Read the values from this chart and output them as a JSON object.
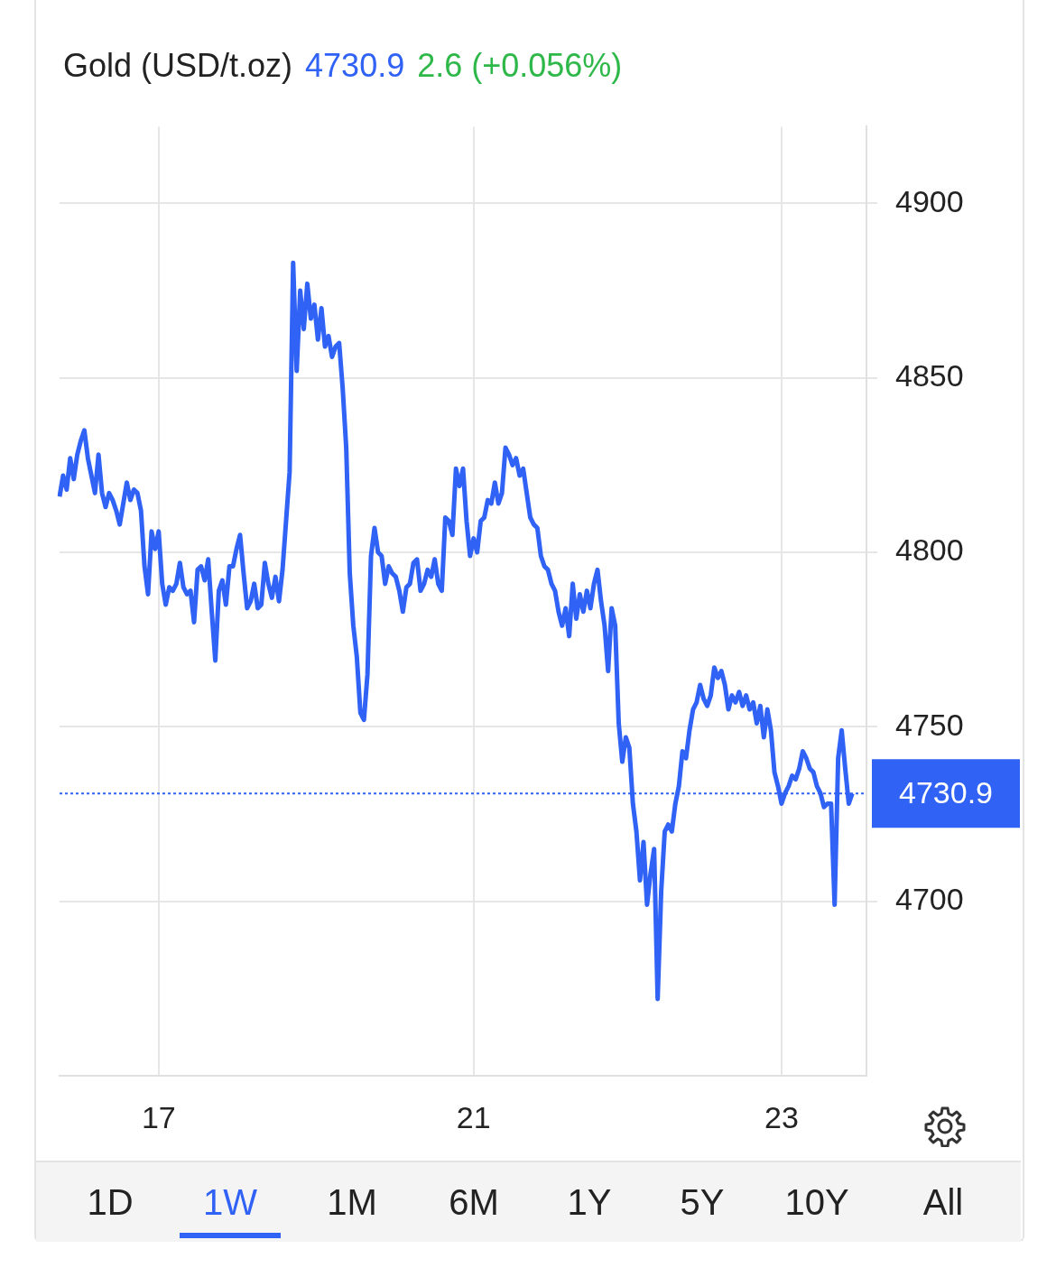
{
  "chart_data": {
    "type": "line",
    "title": "Gold (USD/t.oz)",
    "annotations": [
      "4730.9",
      "2.6 (+0.056%)",
      "1D",
      "1W",
      "1M",
      "6M",
      "1Y",
      "5Y",
      "10Y",
      "All"
    ],
    "categories": [
      null,
      null,
      null,
      null,
      null,
      null,
      null,
      null,
      null,
      null,
      null,
      null,
      null,
      null,
      null,
      null,
      null,
      null,
      null,
      null,
      null,
      null,
      null,
      null,
      null,
      null,
      null,
      null,
      "17",
      null,
      null,
      null,
      null,
      null,
      null,
      null,
      null,
      null,
      null,
      null,
      null,
      null,
      null,
      null,
      null,
      null,
      null,
      null,
      null,
      null,
      null,
      null,
      null,
      null,
      null,
      null,
      null,
      null,
      null,
      null,
      null,
      null,
      null,
      null,
      null,
      null,
      null,
      null,
      null,
      null,
      null,
      null,
      null,
      null,
      null,
      null,
      null,
      null,
      null,
      null,
      null,
      null,
      null,
      null,
      null,
      null,
      null,
      null,
      null,
      null,
      null,
      null,
      null,
      null,
      null,
      null,
      null,
      null,
      null,
      null,
      null,
      null,
      null,
      null,
      null,
      null,
      null,
      null,
      null,
      null,
      null,
      null,
      null,
      null,
      null,
      null,
      null,
      "21",
      null,
      null,
      null,
      null,
      null,
      null,
      null,
      null,
      null,
      null,
      null,
      null,
      null,
      null,
      null,
      null,
      null,
      null,
      null,
      null,
      null,
      null,
      null,
      null,
      null,
      null,
      null,
      null,
      null,
      null,
      null,
      null,
      null,
      null,
      null,
      null,
      null,
      null,
      null,
      null,
      null,
      null,
      null,
      null,
      null,
      null,
      null,
      null,
      null,
      null,
      null,
      null,
      null,
      null,
      null,
      null,
      null,
      null,
      null,
      null,
      null,
      null,
      null,
      null,
      null,
      null,
      null,
      null,
      null,
      null,
      null,
      null,
      null,
      null,
      null,
      null,
      null,
      null,
      null,
      null,
      null,
      null,
      null,
      null,
      null,
      null,
      "23",
      null,
      null,
      null,
      null,
      null,
      null,
      null,
      null,
      null,
      null,
      null,
      null,
      null,
      null,
      null,
      null,
      null,
      null,
      null,
      null,
      null,
      null,
      null,
      null
    ],
    "values": [
      4816,
      4822,
      4818,
      4827,
      4821,
      4828,
      4832,
      4835,
      4827,
      4822,
      4817,
      4828,
      4817,
      4813,
      4817,
      4815,
      4812,
      4808,
      4814,
      4820,
      4815,
      4818,
      4817,
      4812,
      4796,
      4788,
      4806,
      4801,
      4806,
      4791,
      4785,
      4790,
      4789,
      4791,
      4797,
      4790,
      4788,
      4789,
      4780,
      4795,
      4796,
      4792,
      4798,
      4783,
      4769,
      4789,
      4792,
      4785,
      4796,
      4796,
      4801,
      4805,
      4794,
      4784,
      4786,
      4791,
      4784,
      4785,
      4797,
      4791,
      4787,
      4793,
      4786,
      4795,
      4809,
      4823,
      4883,
      4852,
      4875,
      4864,
      4877,
      4867,
      4871,
      4861,
      4870,
      4859,
      4862,
      4856,
      4859,
      4860,
      4847,
      4830,
      4794,
      4779,
      4770,
      4754,
      4752,
      4765,
      4799,
      4807,
      4800,
      4799,
      4791,
      4796,
      4794,
      4793,
      4789,
      4783,
      4790,
      4791,
      4797,
      4798,
      4789,
      4791,
      4795,
      4793,
      4798,
      4791,
      4789,
      4810,
      4809,
      4805,
      4824,
      4819,
      4824,
      4809,
      4799,
      4804,
      4800,
      4809,
      4810,
      4815,
      4814,
      4820,
      4814,
      4817,
      4830,
      4828,
      4825,
      4827,
      4822,
      4824,
      4817,
      4810,
      4808,
      4807,
      4799,
      4796,
      4795,
      4791,
      4789,
      4783,
      4779,
      4784,
      4776,
      4791,
      4781,
      4788,
      4783,
      4789,
      4784,
      4791,
      4795,
      4786,
      4779,
      4766,
      4784,
      4779,
      4751,
      4740,
      4747,
      4744,
      4728,
      4720,
      4706,
      4717,
      4699,
      4708,
      4715,
      4672,
      4703,
      4720,
      4722,
      4720,
      4728,
      4733,
      4743,
      4741,
      4749,
      4755,
      4757,
      4762,
      4758,
      4756,
      4759,
      4767,
      4764,
      4766,
      4762,
      4755,
      4759,
      4757,
      4760,
      4756,
      4759,
      4755,
      4757,
      4751,
      4756,
      4747,
      4755,
      4749,
      4737,
      4733,
      4728,
      4731,
      4733,
      4736,
      4735,
      4738,
      4743,
      4741,
      4738,
      4737,
      4733,
      4731,
      4727,
      4728,
      4728,
      4699,
      4741,
      4749,
      4738,
      4728,
      4730.9,
      null,
      null,
      null,
      null
    ],
    "color": "#2f62f5",
    "marker": "none",
    "ylim": [
      4650,
      4922
    ],
    "yticks": [
      4700,
      4750,
      4800,
      4850,
      4900
    ],
    "grid": true,
    "ref_lines": [
      {
        "axis": "y",
        "value": 4730.9,
        "label": "4730.9",
        "color": "#2f62f5",
        "line_style": "dotted"
      }
    ]
  }
}
